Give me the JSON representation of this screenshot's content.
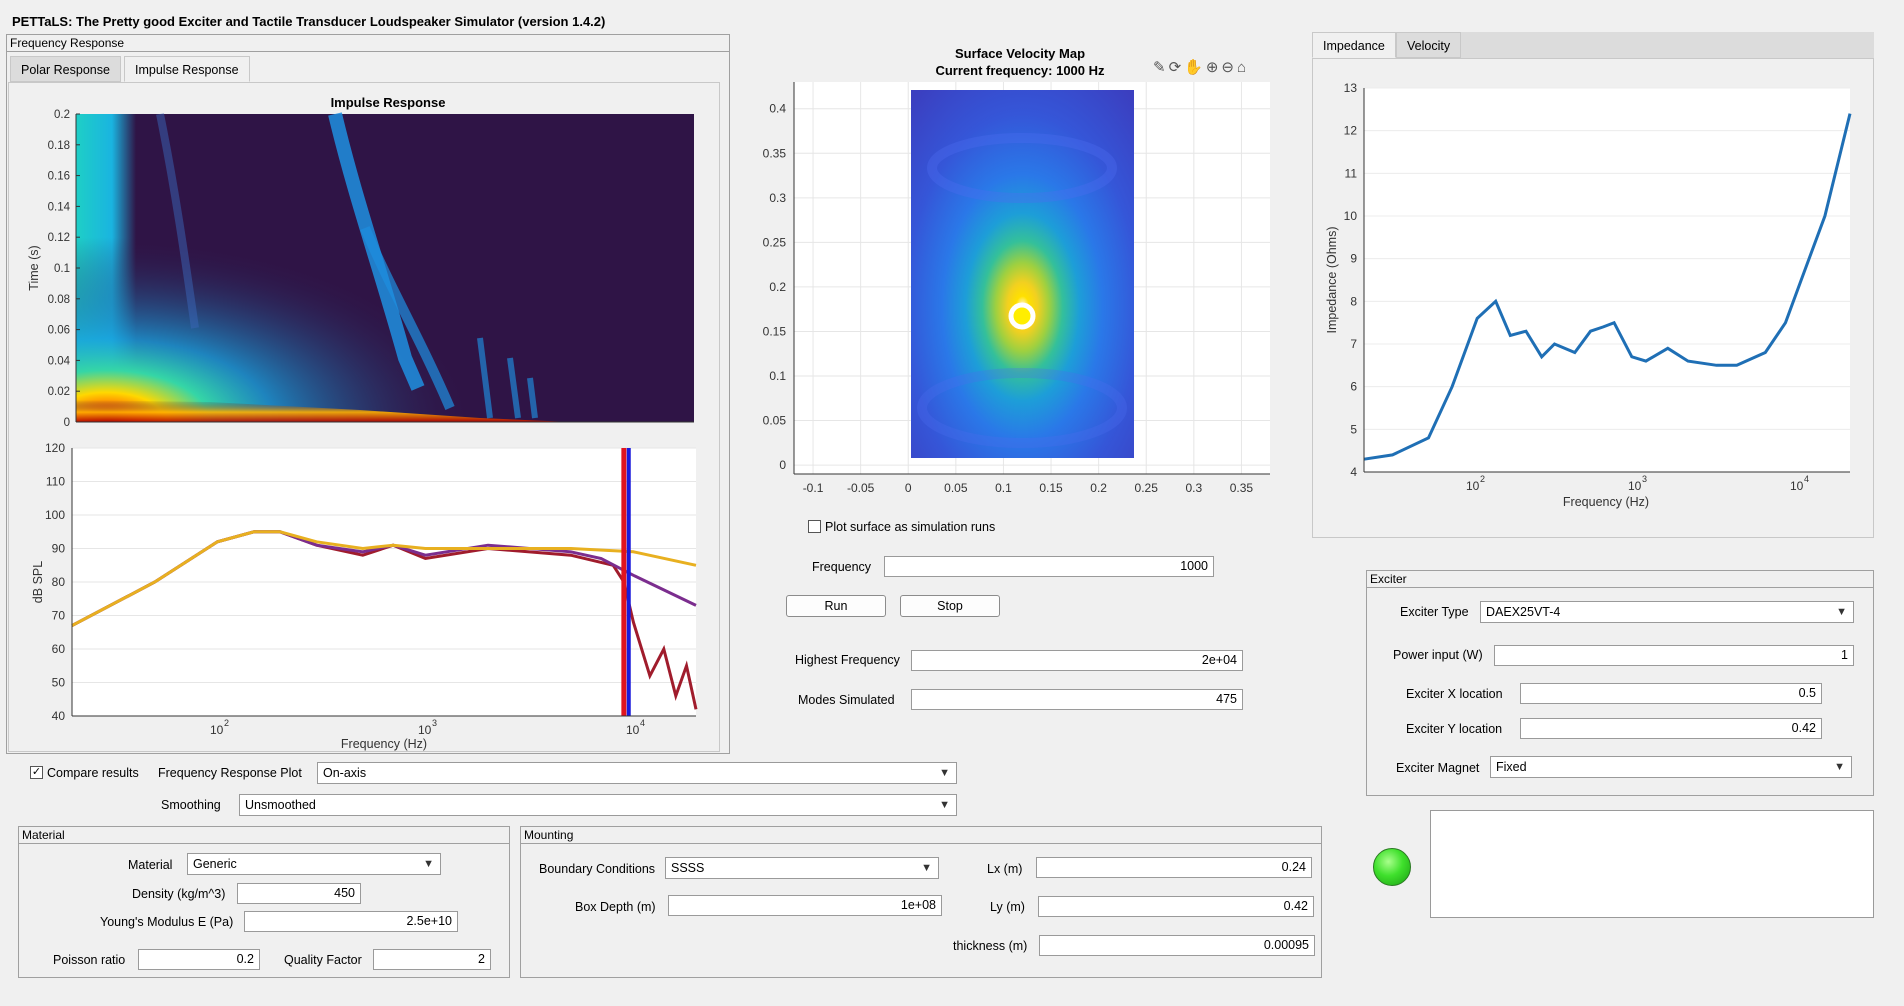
{
  "app": {
    "title": "PETTaLS: The Pretty good Exciter and Tactile Transducer Loudspeaker Simulator (version 1.4.2)"
  },
  "freq_panel": {
    "title": "Frequency Response",
    "tabs": [
      "Polar Response",
      "Impulse Response"
    ],
    "active_tab": "Impulse Response"
  },
  "impulse_plot": {
    "title": "Impulse Response",
    "ylabel": "Time (s)",
    "yticks": [
      "0",
      "0.02",
      "0.04",
      "0.06",
      "0.08",
      "0.1",
      "0.12",
      "0.14",
      "0.16",
      "0.18",
      "0.2"
    ]
  },
  "spl_plot": {
    "ylabel": "dB SPL",
    "xlabel": "Frequency (Hz)",
    "yticks": [
      "40",
      "50",
      "60",
      "70",
      "80",
      "90",
      "100",
      "110",
      "120"
    ],
    "xtick_labels": [
      "10",
      "2",
      "10",
      "3",
      "10",
      "4"
    ]
  },
  "velocity_map": {
    "title": "Surface Velocity Map",
    "subtitle": "Current frequency: 1000 Hz",
    "yticks": [
      "0",
      "0.05",
      "0.1",
      "0.15",
      "0.2",
      "0.25",
      "0.3",
      "0.35",
      "0.4"
    ],
    "xticks": [
      "-0.1",
      "-0.05",
      "0",
      "0.05",
      "0.1",
      "0.15",
      "0.2",
      "0.25",
      "0.3",
      "0.35"
    ],
    "toolbar_icons": [
      "brush-icon",
      "rotate-icon",
      "pan-icon",
      "zoom-in-icon",
      "zoom-out-icon",
      "home-icon"
    ]
  },
  "plot_surface": {
    "label": "Plot surface as simulation runs",
    "checked": false
  },
  "sim_controls": {
    "frequency_label": "Frequency",
    "frequency_value": "1000",
    "run_label": "Run",
    "stop_label": "Stop",
    "highest_freq_label": "Highest Frequency",
    "highest_freq_value": "2e+04",
    "modes_label": "Modes Simulated",
    "modes_value": "475"
  },
  "right_tabs": {
    "tabs": [
      "Impedance",
      "Velocity"
    ],
    "active_tab": "Impedance"
  },
  "impedance_plot": {
    "ylabel": "Impedance (Ohms)",
    "xlabel": "Frequency (Hz)",
    "yticks": [
      "4",
      "5",
      "6",
      "7",
      "8",
      "9",
      "10",
      "11",
      "12",
      "13"
    ]
  },
  "exciter": {
    "title": "Exciter",
    "type_label": "Exciter Type",
    "type_value": "DAEX25VT-4",
    "power_label": "Power input (W)",
    "power_value": "1",
    "x_label": "Exciter X location",
    "x_value": "0.5",
    "y_label": "Exciter Y location",
    "y_value": "0.42",
    "magnet_label": "Exciter Magnet",
    "magnet_value": "Fixed"
  },
  "compare": {
    "label": "Compare results",
    "checked": true,
    "plot_label": "Frequency Response Plot",
    "plot_value": "On-axis",
    "smoothing_label": "Smoothing",
    "smoothing_value": "Unsmoothed"
  },
  "material": {
    "title": "Material",
    "material_label": "Material",
    "material_value": "Generic",
    "density_label": "Density (kg/m^3)",
    "density_value": "450",
    "youngs_label": "Young's Modulus E (Pa)",
    "youngs_value": "2.5e+10",
    "poisson_label": "Poisson ratio",
    "poisson_value": "0.2",
    "quality_label": "Quality Factor",
    "quality_value": "2"
  },
  "mounting": {
    "title": "Mounting",
    "boundary_label": "Boundary Conditions",
    "boundary_value": "SSSS",
    "depth_label": "Box Depth (m)",
    "depth_value": "1e+08",
    "lx_label": "Lx (m)",
    "lx_value": "0.24",
    "ly_label": "Ly (m)",
    "ly_value": "0.42",
    "thickness_label": "thickness (m)",
    "thickness_value": "0.00095"
  },
  "status": {
    "lamp_color": "#33dd22"
  },
  "colors": {
    "impedance_line": "#1f6fb5",
    "spl_yellow": "#e8b020",
    "spl_purple": "#7b2d8e",
    "spl_darkred": "#a01c2c",
    "marker_red": "#e0141e",
    "marker_blue": "#1a1adc"
  },
  "chart_data": [
    {
      "type": "heatmap",
      "title": "Impulse Response",
      "ylabel": "Time (s)",
      "ylim": [
        0,
        0.2
      ],
      "xscale": "log",
      "colormap": "parula/jet-like, dark purple background"
    },
    {
      "type": "line",
      "xlabel": "Frequency (Hz)",
      "ylabel": "dB SPL",
      "xscale": "log",
      "xlim": [
        20,
        20000
      ],
      "ylim": [
        40,
        120
      ],
      "series": [
        {
          "x": [
            20,
            50,
            100,
            150,
            200,
            300,
            500,
            700,
            1000,
            2000,
            5000,
            10000,
            20000
          ],
          "values": [
            67,
            80,
            92,
            95,
            95,
            92,
            90,
            91,
            90,
            90,
            90,
            89,
            85
          ]
        },
        {
          "x": [
            20,
            50,
            100,
            150,
            200,
            300,
            500,
            700,
            1000,
            2000,
            5000,
            7000,
            10000,
            20000
          ],
          "values": [
            67,
            80,
            92,
            95,
            95,
            91,
            89,
            91,
            88,
            91,
            89,
            87,
            82,
            73
          ]
        },
        {
          "x": [
            20,
            50,
            100,
            150,
            200,
            300,
            500,
            700,
            1000,
            2000,
            5000,
            8000,
            9000,
            10000,
            12000,
            14000,
            16000,
            18000,
            20000
          ],
          "values": [
            67,
            80,
            92,
            95,
            95,
            91,
            88,
            91,
            87,
            90,
            88,
            85,
            80,
            68,
            52,
            60,
            46,
            55,
            42
          ]
        }
      ],
      "markers": [
        9000,
        9500
      ]
    },
    {
      "type": "heatmap",
      "title": "Surface Velocity Map",
      "subtitle": "Current frequency: 1000 Hz",
      "xlim": [
        -0.12,
        0.38
      ],
      "ylim": [
        -0.01,
        0.43
      ],
      "plate": {
        "x": [
          0,
          0.24
        ],
        "y": [
          0,
          0.42
        ]
      },
      "peak": [
        0.12,
        0.18
      ]
    },
    {
      "type": "line",
      "xlabel": "Frequency (Hz)",
      "ylabel": "Impedance (Ohms)",
      "xscale": "log",
      "xlim": [
        20,
        20000
      ],
      "ylim": [
        4,
        13
      ],
      "series": [
        {
          "x": [
            20,
            30,
            50,
            70,
            100,
            130,
            160,
            200,
            250,
            300,
            400,
            500,
            600,
            700,
            900,
            1100,
            1500,
            2000,
            3000,
            4000,
            6000,
            8000,
            10000,
            14000,
            20000
          ],
          "values": [
            4.3,
            4.4,
            4.8,
            6.0,
            7.6,
            8.0,
            7.2,
            7.3,
            6.7,
            7.0,
            6.8,
            7.3,
            7.4,
            7.5,
            6.7,
            6.6,
            6.9,
            6.6,
            6.5,
            6.5,
            6.8,
            7.5,
            8.5,
            10.0,
            12.4
          ]
        }
      ]
    }
  ]
}
